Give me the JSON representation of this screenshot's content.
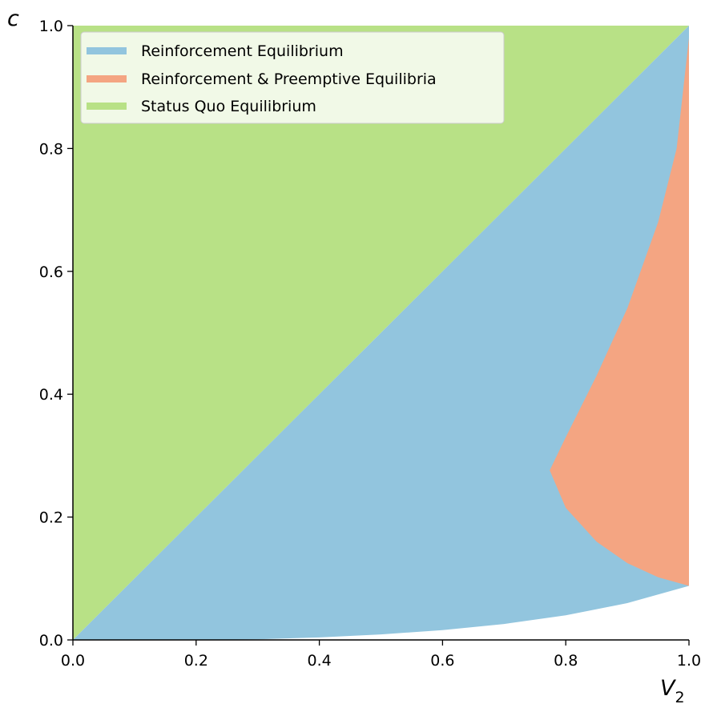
{
  "chart_data": {
    "type": "area",
    "title": "",
    "xlabel": "V",
    "xlabel_subscript": "2",
    "ylabel": "c",
    "xlim": [
      0.0,
      1.0
    ],
    "ylim": [
      0.0,
      1.0
    ],
    "x_ticks": [
      "0.0",
      "0.2",
      "0.4",
      "0.6",
      "0.8",
      "1.0"
    ],
    "y_ticks": [
      "0.0",
      "0.2",
      "0.4",
      "0.6",
      "0.8",
      "1.0"
    ],
    "grid": false,
    "legend_position": "top-left",
    "series": [
      {
        "name": "Reinforcement Equilibrium",
        "color": "#92c5de",
        "description_boundary_upper": "c = V2",
        "lower_boundary": [
          [
            0.0,
            0.0
          ],
          [
            0.2,
            0.0
          ],
          [
            0.3,
            0.001
          ],
          [
            0.4,
            0.004
          ],
          [
            0.5,
            0.009
          ],
          [
            0.6,
            0.016
          ],
          [
            0.7,
            0.026
          ],
          [
            0.8,
            0.04
          ],
          [
            0.9,
            0.06
          ],
          [
            1.0,
            0.088
          ]
        ]
      },
      {
        "name": "Reinforcement & Preemptive Equilibria",
        "color": "#f4a582",
        "upper_boundary": [
          [
            0.774,
            0.276
          ],
          [
            0.8,
            0.33
          ],
          [
            0.85,
            0.43
          ],
          [
            0.9,
            0.54
          ],
          [
            0.95,
            0.68
          ],
          [
            0.98,
            0.8
          ],
          [
            1.0,
            0.98
          ]
        ],
        "lower_boundary": [
          [
            0.774,
            0.276
          ],
          [
            0.8,
            0.215
          ],
          [
            0.85,
            0.16
          ],
          [
            0.9,
            0.125
          ],
          [
            0.95,
            0.102
          ],
          [
            1.0,
            0.088
          ]
        ]
      },
      {
        "name": "Status Quo Equilibrium",
        "color": "#b8e186",
        "description_boundary_lower": "c = V2"
      }
    ]
  }
}
